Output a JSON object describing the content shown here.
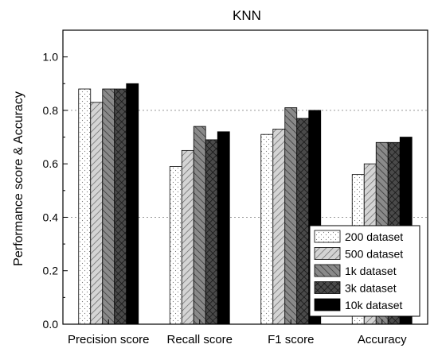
{
  "chart_data": {
    "type": "bar",
    "title": "KNN",
    "xlabel": "",
    "ylabel": "Performance score & Accuracy",
    "ylim": [
      0.0,
      1.1
    ],
    "yticks": [
      "0.0",
      "0.2",
      "0.4",
      "0.6",
      "0.8",
      "1.0"
    ],
    "grid": "horizontal dotted at 0.4 and 0.8",
    "legend_position": "bottom-right",
    "categories": [
      "Precision score",
      "Recall score",
      "F1 score",
      "Accuracy"
    ],
    "series": [
      {
        "name": "200 dataset",
        "values": [
          0.88,
          0.59,
          0.71,
          0.56
        ],
        "fill": "dots",
        "color": "#ffffff"
      },
      {
        "name": "500 dataset",
        "values": [
          0.83,
          0.65,
          0.73,
          0.6
        ],
        "fill": "diagonal",
        "color": "#cccccc"
      },
      {
        "name": "1k dataset",
        "values": [
          0.88,
          0.74,
          0.81,
          0.68
        ],
        "fill": "back-diagonal",
        "color": "#888888"
      },
      {
        "name": "3k dataset",
        "values": [
          0.88,
          0.69,
          0.77,
          0.68
        ],
        "fill": "crosshatch",
        "color": "#444444"
      },
      {
        "name": "10k dataset",
        "values": [
          0.9,
          0.72,
          0.8,
          0.7
        ],
        "fill": "solid",
        "color": "#000000"
      }
    ]
  }
}
